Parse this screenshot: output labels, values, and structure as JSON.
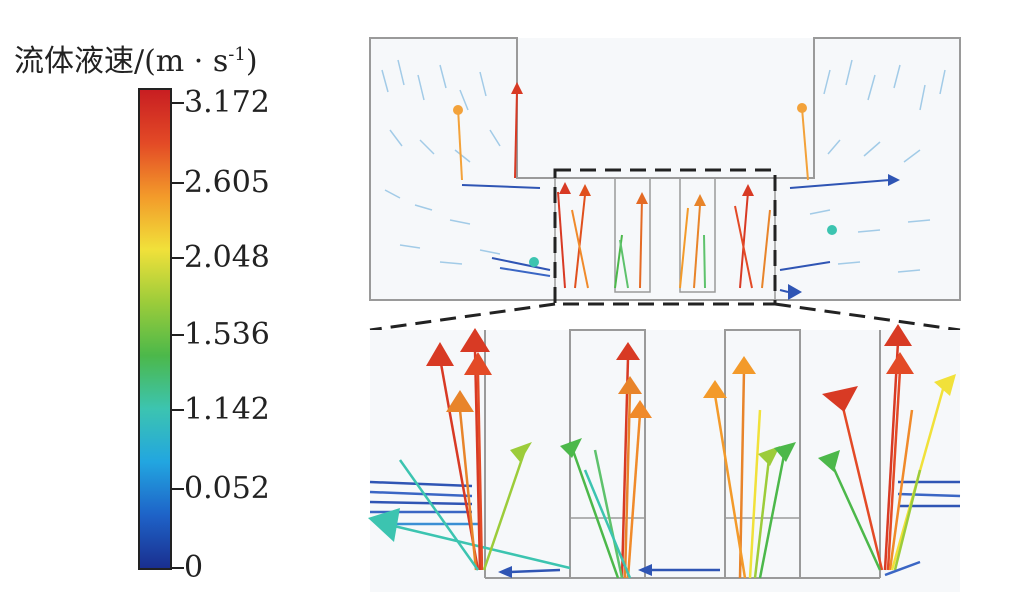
{
  "legend": {
    "title_main": "流体液速/(m · s",
    "title_sup": "-1",
    "title_close": ")",
    "stops": [
      "#1a2f8f",
      "#1e63c8",
      "#22a6e0",
      "#3cc4b0",
      "#4cb84a",
      "#9ccc3a",
      "#f1e13a",
      "#f39a2a",
      "#e34a26",
      "#c81e22"
    ],
    "ticks": [
      "3.172",
      "2.605",
      "2.048",
      "1.536",
      "1.142",
      "0.052",
      "0"
    ]
  },
  "colors": {
    "outline": "#9a9a9a",
    "dash": "#222222"
  }
}
